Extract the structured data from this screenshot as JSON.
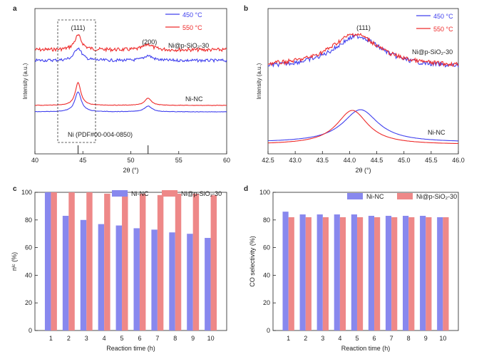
{
  "colors": {
    "blue": "#4040ee",
    "red": "#ee2a2a",
    "bar_blue": "#8888ee",
    "bar_red": "#ee8888"
  },
  "chart_data": [
    {
      "panel": "a",
      "type": "line",
      "xlabel": "2θ (°)",
      "ylabel": "Intensity (a.u.)",
      "xlim": [
        40,
        60
      ],
      "xticks": [
        "40",
        "45",
        "50",
        "55",
        "60"
      ],
      "legend": [
        "450 °C",
        "550 °C"
      ],
      "series": [
        {
          "name": "450 °C",
          "color": "blue"
        },
        {
          "name": "550 °C",
          "color": "red"
        }
      ],
      "peaks": [
        {
          "two_theta": 44.5,
          "label": "(111)"
        },
        {
          "two_theta": 51.8,
          "label": "(200)"
        }
      ],
      "sample_labels": [
        "Ni@p-SiO₂-30",
        "Ni-NC"
      ],
      "reference": {
        "label": "Ni (PDF#00-004-0850)",
        "lines": [
          44.5,
          51.8
        ]
      }
    },
    {
      "panel": "b",
      "type": "line",
      "xlabel": "2θ (°)",
      "ylabel": "Intensity (a.u.)",
      "xlim": [
        42.5,
        46.0
      ],
      "xticks": [
        "42.5",
        "43.0",
        "43.5",
        "44.0",
        "44.5",
        "45.0",
        "45.5",
        "46.0"
      ],
      "legend": [
        "450 °C",
        "550 °C"
      ],
      "peak_label": "(111)",
      "sample_labels": [
        "Ni@p-SiO₂-30",
        "Ni-NC"
      ]
    },
    {
      "panel": "c",
      "type": "bar",
      "xlabel": "Reaction time (h)",
      "ylabel": "nᴵᶜ (%)",
      "ylim": [
        0,
        100
      ],
      "yticks": [
        "0",
        "20",
        "40",
        "60",
        "80",
        "100"
      ],
      "categories": [
        "1",
        "2",
        "3",
        "4",
        "5",
        "6",
        "7",
        "8",
        "9",
        "10"
      ],
      "series": [
        {
          "name": "Ni-NC",
          "color": "bar_blue",
          "values": [
            100,
            83,
            80,
            77,
            76,
            74,
            73,
            71,
            70,
            67
          ]
        },
        {
          "name": "Ni@p-SiO₂-30",
          "color": "bar_red",
          "values": [
            100,
            100,
            100,
            99,
            99,
            99,
            98,
            99,
            99,
            98
          ]
        }
      ]
    },
    {
      "panel": "d",
      "type": "bar",
      "xlabel": "Reaction time (h)",
      "ylabel": "CO selectivity (%)",
      "ylim": [
        0,
        100
      ],
      "yticks": [
        "0",
        "20",
        "40",
        "60",
        "80",
        "100"
      ],
      "categories": [
        "1",
        "2",
        "3",
        "4",
        "5",
        "6",
        "7",
        "8",
        "9",
        "10"
      ],
      "series": [
        {
          "name": "Ni-NC",
          "color": "bar_blue",
          "values": [
            86,
            84,
            84,
            84,
            84,
            83,
            83,
            83,
            83,
            82
          ]
        },
        {
          "name": "Ni@p-SiO₂-30",
          "color": "bar_red",
          "values": [
            82,
            82,
            82,
            82,
            82,
            82,
            82,
            82,
            82,
            82
          ]
        }
      ]
    }
  ]
}
